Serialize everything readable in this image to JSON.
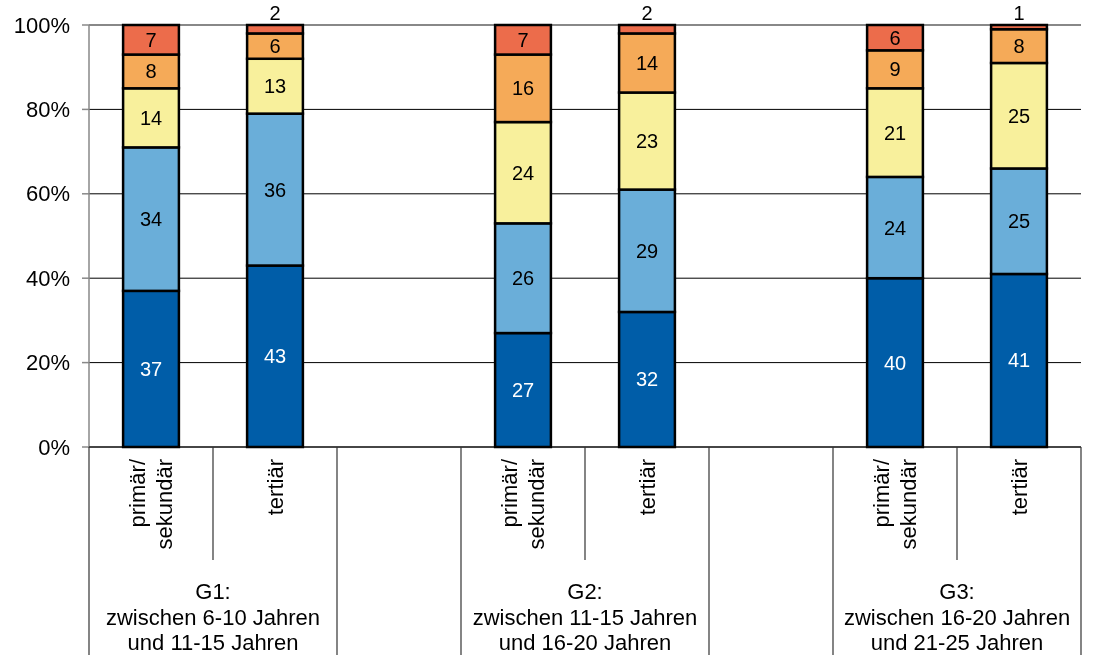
{
  "chart_data": {
    "type": "bar",
    "stacked": true,
    "categories": [
      "primär/\nsekundär",
      "tertiär",
      null,
      "primär/\nsekundär",
      "tertiär",
      null,
      "primär/\nsekundär",
      "tertiär"
    ],
    "series": [
      {
        "color": "#005da8",
        "values": [
          37,
          43,
          null,
          27,
          32,
          null,
          40,
          41
        ]
      },
      {
        "color": "#6aaed9",
        "values": [
          34,
          36,
          null,
          26,
          29,
          null,
          24,
          25
        ]
      },
      {
        "color": "#f8f09c",
        "values": [
          14,
          13,
          null,
          24,
          23,
          null,
          21,
          25
        ]
      },
      {
        "color": "#f5aa58",
        "values": [
          8,
          6,
          null,
          16,
          14,
          null,
          9,
          8
        ]
      },
      {
        "color": "#ec6c4b",
        "values": [
          7,
          2,
          null,
          7,
          2,
          null,
          6,
          1
        ]
      }
    ],
    "ylim": [
      0,
      100
    ],
    "yticks": [
      {
        "value": 0,
        "label": "0%"
      },
      {
        "value": 20,
        "label": "20%"
      },
      {
        "value": 40,
        "label": "40%"
      },
      {
        "value": 60,
        "label": "60%"
      },
      {
        "value": 80,
        "label": "80%"
      },
      {
        "value": 100,
        "label": "100%"
      }
    ],
    "grid": "y",
    "data_labels": true,
    "annotations": [
      "G1:\nzwischen 6-10 Jahren\nund 11-15 Jahren",
      "G2:\nzwischen 11-15 Jahren\nund 16-20 Jahren",
      "G3:\nzwischen 16-20 Jahren\nund 21-25 Jahren"
    ]
  }
}
